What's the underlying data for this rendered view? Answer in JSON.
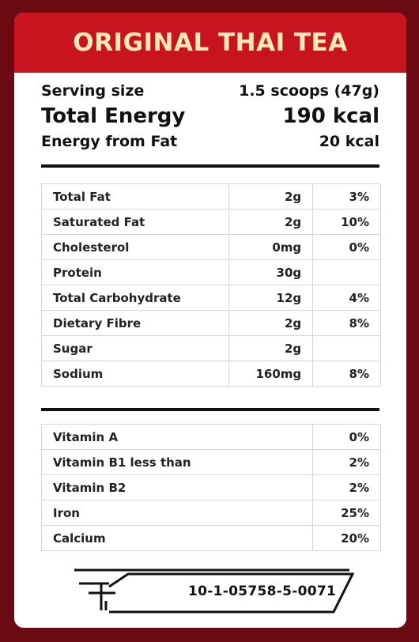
{
  "title": "ORIGINAL THAI TEA",
  "summary": {
    "serving_label": "Serving size",
    "serving_value": "1.5 scoops (47g)",
    "energy_label": "Total Energy",
    "energy_value": "190 kcal",
    "fat_energy_label": "Energy from Fat",
    "fat_energy_value": "20 kcal"
  },
  "nutrients": [
    {
      "name": "Total Fat",
      "amount": "2g",
      "dv": "3%"
    },
    {
      "name": "Saturated Fat",
      "amount": "2g",
      "dv": "10%"
    },
    {
      "name": "Cholesterol",
      "amount": "0mg",
      "dv": "0%"
    },
    {
      "name": "Protein",
      "amount": "30g",
      "dv": ""
    },
    {
      "name": "Total Carbohydrate",
      "amount": "12g",
      "dv": "4%"
    },
    {
      "name": "Dietary Fibre",
      "amount": "2g",
      "dv": "8%"
    },
    {
      "name": "Sugar",
      "amount": "2g",
      "dv": ""
    },
    {
      "name": "Sodium",
      "amount": "160mg",
      "dv": "8%"
    }
  ],
  "vitamins": [
    {
      "name": "Vitamin A",
      "dv": "0%"
    },
    {
      "name": "Vitamin B1 less than",
      "dv": "2%"
    },
    {
      "name": "Vitamin B2",
      "dv": "2%"
    },
    {
      "name": "Iron",
      "dv": "25%"
    },
    {
      "name": "Calcium",
      "dv": "20%"
    }
  ],
  "registration": {
    "number": "10-1-05758-5-0071",
    "icon": "thai-fda-logo-icon"
  },
  "colors": {
    "background": "#6b0a12",
    "title_bar": "#c8141e",
    "title_text": "#ffe9b8",
    "card": "#ffffff",
    "text": "#111111"
  }
}
